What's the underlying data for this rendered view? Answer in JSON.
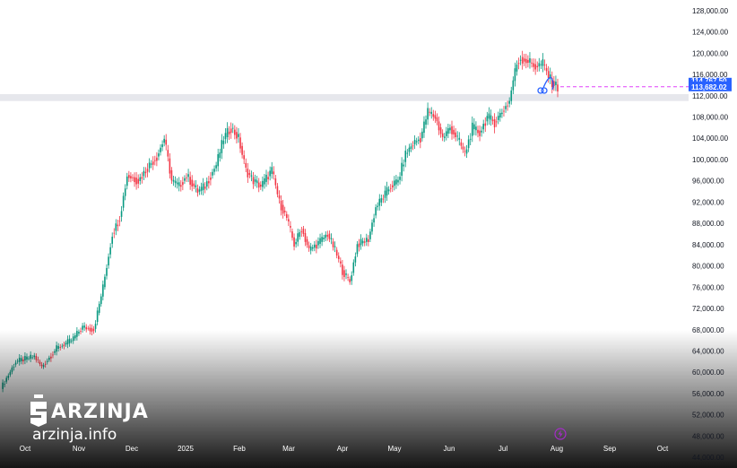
{
  "brand": {
    "name": "ARZINJA",
    "url": "arzinja.info",
    "logo_icon": "arzinja-s-logo-icon"
  },
  "colors": {
    "up": "#089981",
    "down": "#f23645",
    "zone": "#d1d4dc",
    "price_line": "#e040fb",
    "label_bg": "#2962ff",
    "marker": "#2962ff"
  },
  "markers": {
    "lightning_icon": "lightning-icon"
  },
  "chart_data": {
    "type": "candlestick",
    "y_axis": {
      "position": "right",
      "min": 42000,
      "max": 130000,
      "ticks": [
        "128,000.00",
        "124,000.00",
        "120,000.00",
        "116,000.00",
        "112,000.00",
        "108,000.00",
        "104,000.00",
        "100,000.00",
        "96,000.00",
        "92,000.00",
        "88,000.00",
        "84,000.00",
        "80,000.00",
        "76,000.00",
        "72,000.00",
        "68,000.00",
        "64,000.00",
        "60,000.00",
        "56,000.00",
        "52,000.00",
        "48,000.00",
        "44,000.00"
      ]
    },
    "x_axis": {
      "ticks": [
        "Oct",
        "Nov",
        "Dec",
        "2025",
        "Feb",
        "Mar",
        "Apr",
        "May",
        "Jun",
        "Jul",
        "Aug",
        "Sep",
        "Oct"
      ]
    },
    "current_price": 113682.02,
    "current_price_label": "113,682.02",
    "hidden_price_label": "114,767.50",
    "support_zone": [
      111000,
      112300
    ],
    "anchors": [
      [
        0,
        57000
      ],
      [
        8,
        62000
      ],
      [
        18,
        63000
      ],
      [
        22,
        61000
      ],
      [
        30,
        64500
      ],
      [
        38,
        66000
      ],
      [
        44,
        68500
      ],
      [
        50,
        68000
      ],
      [
        55,
        76000
      ],
      [
        60,
        86000
      ],
      [
        64,
        89000
      ],
      [
        68,
        97000
      ],
      [
        74,
        96000
      ],
      [
        80,
        99000
      ],
      [
        84,
        100500
      ],
      [
        88,
        104000
      ],
      [
        92,
        96000
      ],
      [
        96,
        95000
      ],
      [
        100,
        97000
      ],
      [
        106,
        94000
      ],
      [
        110,
        95000
      ],
      [
        116,
        99000
      ],
      [
        120,
        104000
      ],
      [
        124,
        106000
      ],
      [
        128,
        104000
      ],
      [
        132,
        98000
      ],
      [
        136,
        96000
      ],
      [
        140,
        95000
      ],
      [
        146,
        98000
      ],
      [
        150,
        92000
      ],
      [
        154,
        89000
      ],
      [
        158,
        84000
      ],
      [
        162,
        87000
      ],
      [
        166,
        83000
      ],
      [
        170,
        84000
      ],
      [
        176,
        86000
      ],
      [
        180,
        83000
      ],
      [
        184,
        79000
      ],
      [
        188,
        77000
      ],
      [
        192,
        84000
      ],
      [
        198,
        85000
      ],
      [
        202,
        91000
      ],
      [
        206,
        93000
      ],
      [
        210,
        95000
      ],
      [
        214,
        96000
      ],
      [
        218,
        101000
      ],
      [
        222,
        103000
      ],
      [
        226,
        104000
      ],
      [
        230,
        109000
      ],
      [
        234,
        108000
      ],
      [
        238,
        104000
      ],
      [
        242,
        106000
      ],
      [
        246,
        104000
      ],
      [
        250,
        101000
      ],
      [
        254,
        106000
      ],
      [
        258,
        105000
      ],
      [
        262,
        108000
      ],
      [
        266,
        107000
      ],
      [
        270,
        109000
      ],
      [
        274,
        111000
      ],
      [
        276,
        115000
      ],
      [
        278,
        118000
      ],
      [
        280,
        119000
      ],
      [
        284,
        118500
      ],
      [
        288,
        117500
      ],
      [
        292,
        118000
      ],
      [
        296,
        115000
      ],
      [
        300,
        113500
      ]
    ],
    "x_start": "2024-09-15"
  }
}
